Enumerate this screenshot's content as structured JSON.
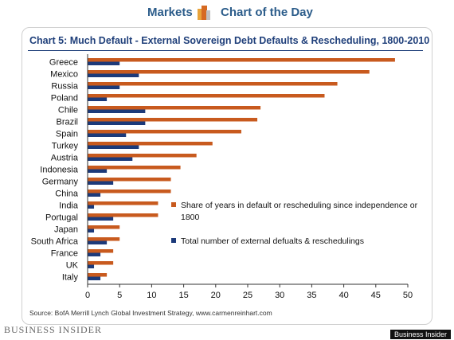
{
  "header": {
    "markets_label": "Markets",
    "chart_of_day_label": "Chart of the Day"
  },
  "footer": {
    "source": "Source: BofA Merrill Lynch Global Investment Strategy, www.carmenreinhart.com",
    "brand": "BUSINESS INSIDER",
    "badge": "Business Insider"
  },
  "colors": {
    "orange": "#c85a1e",
    "blue": "#1c3a7a",
    "title": "#1f3f7a"
  },
  "chart_data": {
    "type": "bar",
    "orientation": "horizontal",
    "title": "Chart 5: Much Default - External Sovereign Debt Defaults & Rescheduling, 1800-2010",
    "categories": [
      "Greece",
      "Mexico",
      "Russia",
      "Poland",
      "Chile",
      "Brazil",
      "Spain",
      "Turkey",
      "Austria",
      "Indonesia",
      "Germany",
      "China",
      "India",
      "Portugal",
      "Japan",
      "South Africa",
      "France",
      "UK",
      "Italy"
    ],
    "series": [
      {
        "name": "Share of years in default or rescheduling since independence or 1800",
        "color": "#c85a1e",
        "values": [
          48,
          44,
          39,
          37,
          27,
          26.5,
          24,
          19.5,
          17,
          14.5,
          13,
          13,
          11,
          11,
          5,
          5,
          4,
          4,
          3
        ]
      },
      {
        "name": "Total number of external defualts & reschedulings",
        "color": "#1c3a7a",
        "values": [
          5,
          8,
          5,
          3,
          9,
          9,
          6,
          8,
          7,
          3,
          4,
          2,
          1,
          4,
          1,
          3,
          2,
          1,
          2
        ]
      }
    ],
    "xlim": [
      0,
      50
    ],
    "xticks": [
      0,
      5,
      10,
      15,
      20,
      25,
      30,
      35,
      40,
      45,
      50
    ],
    "legend_position": "right"
  }
}
